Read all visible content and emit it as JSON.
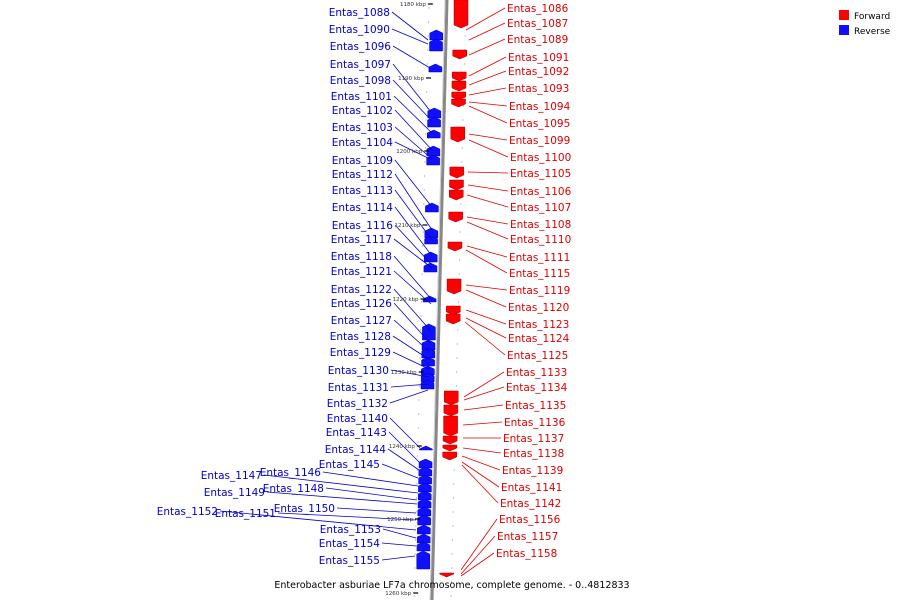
{
  "caption": "Enterobacter asburiae LF7a chromosome, complete genome. - 0..4812833",
  "colors": {
    "forward": "#ff0000",
    "reverse": "#1010ff",
    "forward_line": "#e00000",
    "reverse_line": "#0000cc",
    "axis": "#888888"
  },
  "legend": [
    {
      "label": "Forward",
      "color": "#ff0000"
    },
    {
      "label": "Reverse",
      "color": "#1010ff"
    }
  ],
  "ticks": [
    "1180 kbp",
    "1190 kbp",
    "1200 kbp",
    "1210 kbp",
    "1220 kbp",
    "1230 kbp",
    "1240 kbp",
    "1250 kbp",
    "1260 kbp"
  ],
  "reverse_genes": [
    "Entas_1088",
    "Entas_1090",
    "Entas_1096",
    "Entas_1097",
    "Entas_1098",
    "Entas_1101",
    "Entas_1102",
    "Entas_1103",
    "Entas_1104",
    "Entas_1109",
    "Entas_1112",
    "Entas_1113",
    "Entas_1114",
    "Entas_1116",
    "Entas_1117",
    "Entas_1118",
    "Entas_1121",
    "Entas_1122",
    "Entas_1126",
    "Entas_1127",
    "Entas_1128",
    "Entas_1129",
    "Entas_1130",
    "Entas_1131",
    "Entas_1132",
    "Entas_1140",
    "Entas_1143",
    "Entas_1144",
    "Entas_1145",
    "Entas_1146",
    "Entas_1147",
    "Entas_1148",
    "Entas_1149",
    "Entas_1150",
    "Entas_1151",
    "Entas_1152",
    "Entas_1153",
    "Entas_1154",
    "Entas_1155"
  ],
  "forward_genes": [
    "Entas_1086",
    "Entas_1087",
    "Entas_1089",
    "Entas_1091",
    "Entas_1092",
    "Entas_1093",
    "Entas_1094",
    "Entas_1095",
    "Entas_1099",
    "Entas_1100",
    "Entas_1105",
    "Entas_1106",
    "Entas_1107",
    "Entas_1108",
    "Entas_1110",
    "Entas_1111",
    "Entas_1115",
    "Entas_1119",
    "Entas_1120",
    "Entas_1123",
    "Entas_1124",
    "Entas_1125",
    "Entas_1133",
    "Entas_1134",
    "Entas_1135",
    "Entas_1136",
    "Entas_1137",
    "Entas_1138",
    "Entas_1139",
    "Entas_1141",
    "Entas_1142",
    "Entas_1156",
    "Entas_1157",
    "Entas_1158"
  ]
}
